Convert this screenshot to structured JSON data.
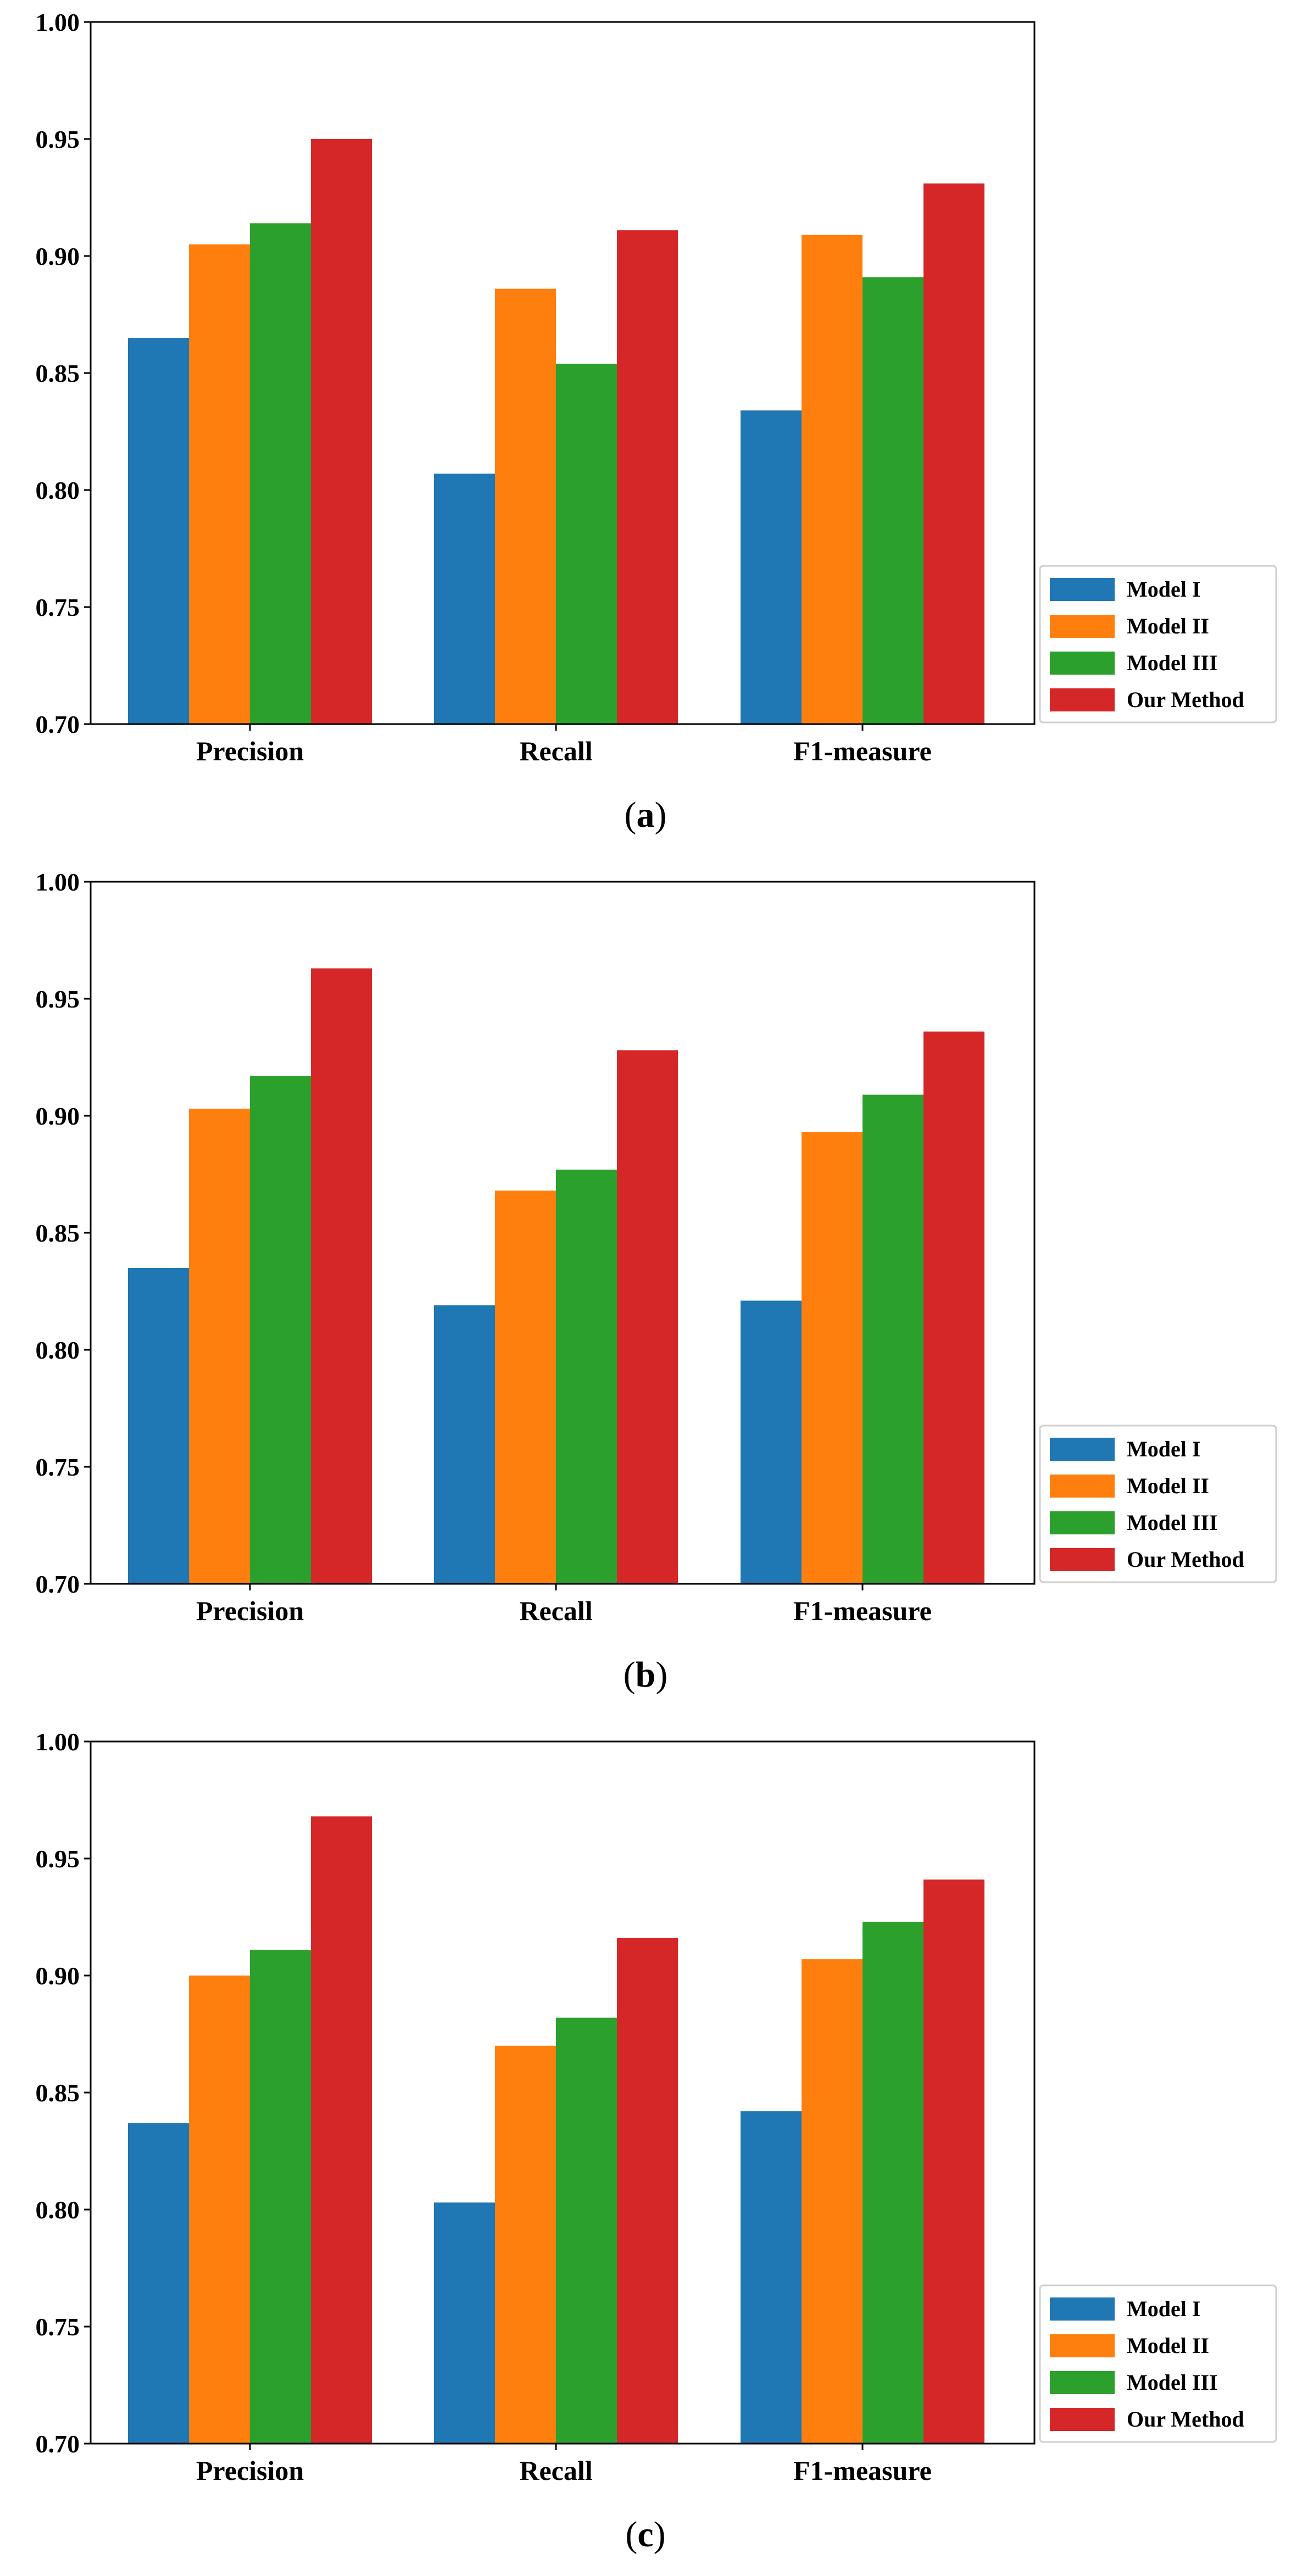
{
  "colors": {
    "Model I": "#1f77b4",
    "Model II": "#ff7f0e",
    "Model III": "#2ca02c",
    "Our Method": "#d62728"
  },
  "chart_data": [
    {
      "type": "bar",
      "caption_open": "(",
      "caption_letter": "a",
      "caption_close": ")",
      "categories": [
        "Precision",
        "Recall",
        "F1-measure"
      ],
      "ylim": [
        0.7,
        1.0
      ],
      "yticks": [
        "0.70",
        "0.75",
        "0.80",
        "0.85",
        "0.90",
        "0.95",
        "1.00"
      ],
      "grid": false,
      "legend_position": "outside-right-bottom",
      "series": [
        {
          "name": "Model I",
          "values": [
            0.865,
            0.807,
            0.834
          ]
        },
        {
          "name": "Model II",
          "values": [
            0.905,
            0.886,
            0.909
          ]
        },
        {
          "name": "Model III",
          "values": [
            0.914,
            0.854,
            0.891
          ]
        },
        {
          "name": "Our Method",
          "values": [
            0.95,
            0.911,
            0.931
          ]
        }
      ]
    },
    {
      "type": "bar",
      "caption_open": "(",
      "caption_letter": "b",
      "caption_close": ")",
      "categories": [
        "Precision",
        "Recall",
        "F1-measure"
      ],
      "ylim": [
        0.7,
        1.0
      ],
      "yticks": [
        "0.70",
        "0.75",
        "0.80",
        "0.85",
        "0.90",
        "0.95",
        "1.00"
      ],
      "grid": false,
      "legend_position": "outside-right-bottom",
      "series": [
        {
          "name": "Model I",
          "values": [
            0.835,
            0.819,
            0.821
          ]
        },
        {
          "name": "Model II",
          "values": [
            0.903,
            0.868,
            0.893
          ]
        },
        {
          "name": "Model III",
          "values": [
            0.917,
            0.877,
            0.909
          ]
        },
        {
          "name": "Our Method",
          "values": [
            0.963,
            0.928,
            0.936
          ]
        }
      ]
    },
    {
      "type": "bar",
      "caption_open": "(",
      "caption_letter": "c",
      "caption_close": ")",
      "categories": [
        "Precision",
        "Recall",
        "F1-measure"
      ],
      "ylim": [
        0.7,
        1.0
      ],
      "yticks": [
        "0.70",
        "0.75",
        "0.80",
        "0.85",
        "0.90",
        "0.95",
        "1.00"
      ],
      "grid": false,
      "legend_position": "outside-right-bottom",
      "series": [
        {
          "name": "Model I",
          "values": [
            0.837,
            0.803,
            0.842
          ]
        },
        {
          "name": "Model II",
          "values": [
            0.9,
            0.87,
            0.907
          ]
        },
        {
          "name": "Model III",
          "values": [
            0.911,
            0.882,
            0.923
          ]
        },
        {
          "name": "Our Method",
          "values": [
            0.968,
            0.916,
            0.941
          ]
        }
      ]
    }
  ]
}
